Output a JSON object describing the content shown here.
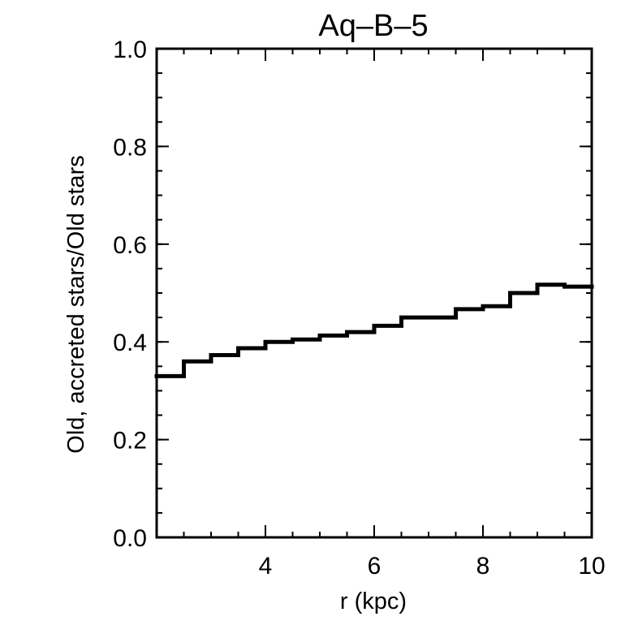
{
  "chart_data": {
    "type": "line",
    "step": true,
    "title": "Aq–B–5",
    "xlabel": "r (kpc)",
    "ylabel": "Old, accreted stars/Old stars",
    "xlim": [
      2,
      10
    ],
    "ylim": [
      0.0,
      1.0
    ],
    "x_major_ticks": [
      2,
      4,
      6,
      8,
      10
    ],
    "x_tick_labels": [
      "",
      "4",
      "6",
      "8",
      "10"
    ],
    "x_minor_step": 0.5,
    "y_major_ticks": [
      0.0,
      0.2,
      0.4,
      0.6,
      0.8,
      1.0
    ],
    "y_tick_labels": [
      "0.0",
      "0.2",
      "0.4",
      "0.6",
      "0.8",
      "1.0"
    ],
    "y_minor_step": 0.05,
    "grid": false,
    "series": [
      {
        "bin_edges": [
          2.0,
          2.5,
          3.0,
          3.5,
          4.0,
          4.5,
          5.0,
          5.5,
          6.0,
          6.5,
          7.0,
          7.5,
          8.0,
          8.5,
          9.0,
          9.5,
          10.0
        ],
        "values": [
          0.33,
          0.36,
          0.373,
          0.387,
          0.4,
          0.405,
          0.413,
          0.42,
          0.433,
          0.45,
          0.45,
          0.467,
          0.473,
          0.5,
          0.517,
          0.513
        ]
      }
    ]
  }
}
